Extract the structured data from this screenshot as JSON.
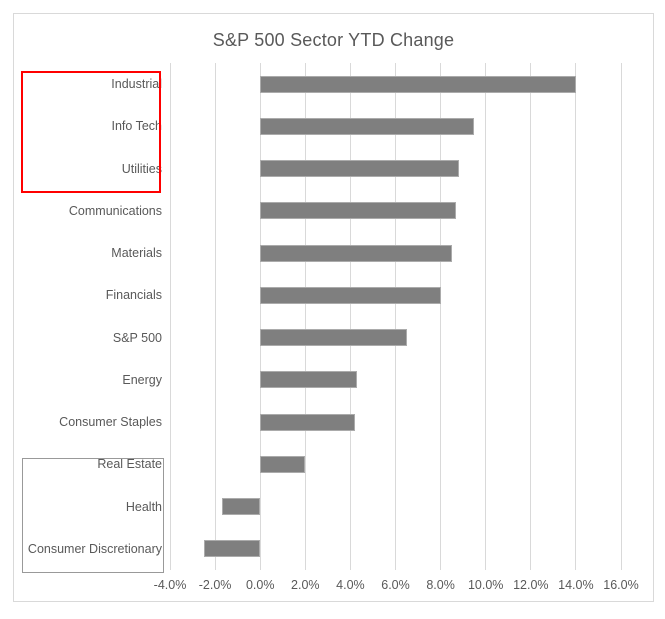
{
  "chart_data": {
    "type": "bar",
    "orientation": "horizontal",
    "title": "S&P 500 Sector YTD Change",
    "categories": [
      "Industrial",
      "Info Tech",
      "Utilities",
      "Communications",
      "Materials",
      "Financials",
      "S&P 500",
      "Energy",
      "Consumer Staples",
      "Real Estate",
      "Health",
      "Consumer Discretionary"
    ],
    "values": [
      14.0,
      9.5,
      8.8,
      8.7,
      8.5,
      8.0,
      6.5,
      4.3,
      4.2,
      2.0,
      -1.7,
      -2.5
    ],
    "value_unit": "percent",
    "xlim": [
      -4,
      16
    ],
    "xticks": [
      -4,
      -2,
      0,
      2,
      4,
      6,
      8,
      10,
      12,
      14,
      16
    ],
    "xtick_labels": [
      "-4.0%",
      "-2.0%",
      "0.0%",
      "2.0%",
      "4.0%",
      "6.0%",
      "8.0%",
      "10.0%",
      "12.0%",
      "14.0%",
      "16.0%"
    ],
    "grid": "vertical",
    "legend": "none"
  },
  "colors": {
    "bar_fill": "#7F7F7F",
    "bar_border": "#ABABAB",
    "gridline": "#D9D9D9",
    "chart_border": "#D9D9D9",
    "text": "#595959",
    "annotation_red": "#FF0000",
    "annotation_gray": "#999999"
  },
  "annotations": [
    {
      "type": "box",
      "color_ref": "annotation_red",
      "categories": [
        "Industrial",
        "Info Tech",
        "Utilities"
      ]
    },
    {
      "type": "box",
      "color_ref": "annotation_gray",
      "categories": [
        "Real Estate",
        "Health",
        "Consumer Discretionary"
      ]
    }
  ]
}
